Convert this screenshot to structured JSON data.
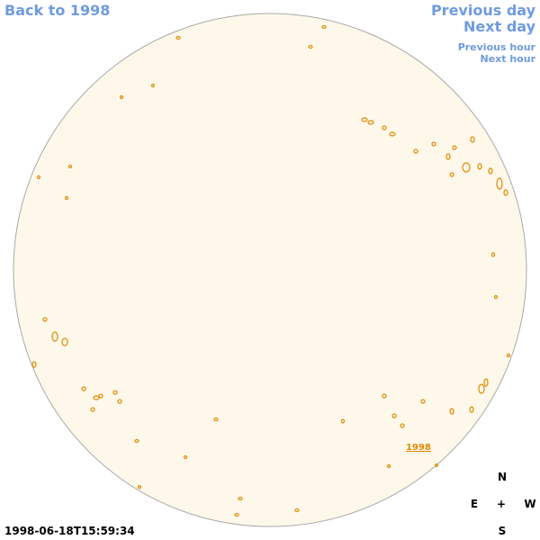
{
  "nav": {
    "back": "Back to 1998",
    "previous_day": "Previous day",
    "next_day": "Next day",
    "previous_hour": "Previous hour",
    "next_hour": "Next hour"
  },
  "timestamp": "1998-06-18T15:59:34",
  "region_label": "1998",
  "compass": {
    "north": "N",
    "east": "E",
    "center": "+",
    "west": "W",
    "south": "S"
  }
}
